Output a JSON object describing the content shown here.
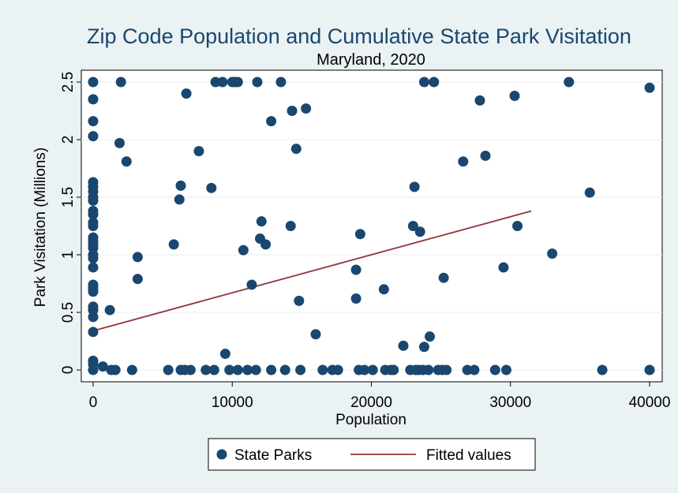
{
  "chart_data": {
    "type": "scatter",
    "title": "Zip Code Population and Cumulative State Park Visitation",
    "subtitle": "Maryland, 2020",
    "xlabel": "Population",
    "ylabel": "Park Visitation (Millions)",
    "xlim": [
      0,
      40000
    ],
    "ylim": [
      0,
      2.5
    ],
    "x_ticks": [
      0,
      10000,
      20000,
      30000,
      40000
    ],
    "x_tick_labels": [
      "0",
      "10000",
      "20000",
      "30000",
      "40000"
    ],
    "y_ticks": [
      0,
      0.5,
      1,
      1.5,
      2,
      2.5
    ],
    "y_tick_labels": [
      "0",
      "0.5",
      "1",
      "1.5",
      "2",
      "2.5"
    ],
    "grid": true,
    "legend_position": "bottom",
    "colors": {
      "scatter": "#1a476f",
      "fit": "#90353b",
      "background": "#eaf2f3",
      "plot_bg": "#ffffff"
    },
    "series": [
      {
        "name": "State Parks",
        "kind": "scatter",
        "points": [
          [
            0,
            2.5
          ],
          [
            0,
            2.35
          ],
          [
            0,
            2.16
          ],
          [
            0,
            2.03
          ],
          [
            0,
            1.63
          ],
          [
            0,
            1.59
          ],
          [
            0,
            1.55
          ],
          [
            0,
            1.5
          ],
          [
            0,
            1.47
          ],
          [
            0,
            1.38
          ],
          [
            0,
            1.35
          ],
          [
            0,
            1.28
          ],
          [
            0,
            1.25
          ],
          [
            0,
            1.15
          ],
          [
            0,
            1.12
          ],
          [
            0,
            1.09
          ],
          [
            0,
            1.06
          ],
          [
            0,
            1.0
          ],
          [
            0,
            0.97
          ],
          [
            0,
            0.89
          ],
          [
            0,
            0.74
          ],
          [
            0,
            0.71
          ],
          [
            0,
            0.68
          ],
          [
            0,
            0.55
          ],
          [
            0,
            0.52
          ],
          [
            0,
            0.46
          ],
          [
            0,
            0.33
          ],
          [
            0,
            0.08
          ],
          [
            0,
            0.05
          ],
          [
            0,
            0
          ],
          [
            700,
            0.03
          ],
          [
            1200,
            0.52
          ],
          [
            1300,
            0
          ],
          [
            1600,
            0
          ],
          [
            1900,
            1.97
          ],
          [
            2000,
            2.5
          ],
          [
            2400,
            1.81
          ],
          [
            2800,
            0
          ],
          [
            3200,
            0.98
          ],
          [
            3200,
            0.79
          ],
          [
            5400,
            0
          ],
          [
            5800,
            1.09
          ],
          [
            6200,
            1.48
          ],
          [
            6300,
            1.6
          ],
          [
            6300,
            0
          ],
          [
            6600,
            0
          ],
          [
            6700,
            2.4
          ],
          [
            7000,
            0
          ],
          [
            7600,
            1.9
          ],
          [
            8100,
            0
          ],
          [
            8500,
            1.58
          ],
          [
            8700,
            0
          ],
          [
            8800,
            2.5
          ],
          [
            9500,
            0.14
          ],
          [
            9800,
            0
          ],
          [
            9300,
            2.5
          ],
          [
            10000,
            2.5
          ],
          [
            10200,
            2.5
          ],
          [
            10400,
            2.5
          ],
          [
            10400,
            0
          ],
          [
            10800,
            1.04
          ],
          [
            11100,
            0
          ],
          [
            11400,
            0.74
          ],
          [
            11700,
            0
          ],
          [
            11800,
            2.5
          ],
          [
            12000,
            1.14
          ],
          [
            12100,
            1.29
          ],
          [
            12400,
            1.09
          ],
          [
            12800,
            2.16
          ],
          [
            12800,
            0
          ],
          [
            13500,
            2.5
          ],
          [
            13800,
            0
          ],
          [
            14200,
            1.25
          ],
          [
            14300,
            2.25
          ],
          [
            14600,
            1.92
          ],
          [
            14800,
            0.6
          ],
          [
            14900,
            0
          ],
          [
            15300,
            2.27
          ],
          [
            16000,
            0.31
          ],
          [
            16500,
            0
          ],
          [
            17200,
            0
          ],
          [
            17600,
            0
          ],
          [
            18900,
            0.87
          ],
          [
            18900,
            0.62
          ],
          [
            19100,
            0
          ],
          [
            19200,
            1.18
          ],
          [
            19500,
            0
          ],
          [
            20100,
            0
          ],
          [
            20900,
            0.7
          ],
          [
            21000,
            0
          ],
          [
            21400,
            0
          ],
          [
            21600,
            0
          ],
          [
            22300,
            0.21
          ],
          [
            22800,
            0
          ],
          [
            23000,
            1.25
          ],
          [
            23100,
            1.59
          ],
          [
            23200,
            0
          ],
          [
            23400,
            0
          ],
          [
            23500,
            1.2
          ],
          [
            23700,
            0
          ],
          [
            23800,
            0.2
          ],
          [
            23800,
            2.5
          ],
          [
            24100,
            0
          ],
          [
            24200,
            0.29
          ],
          [
            24500,
            2.5
          ],
          [
            24800,
            0
          ],
          [
            25100,
            0
          ],
          [
            25200,
            0.8
          ],
          [
            25400,
            0
          ],
          [
            26600,
            1.81
          ],
          [
            26900,
            0
          ],
          [
            27400,
            0
          ],
          [
            27800,
            2.34
          ],
          [
            28200,
            1.86
          ],
          [
            28900,
            0
          ],
          [
            29500,
            0.89
          ],
          [
            29700,
            0
          ],
          [
            30300,
            2.38
          ],
          [
            30500,
            1.25
          ],
          [
            33000,
            1.01
          ],
          [
            34200,
            2.5
          ],
          [
            35700,
            1.54
          ],
          [
            36600,
            0
          ],
          [
            40000,
            2.45
          ],
          [
            40000,
            0
          ]
        ]
      },
      {
        "name": "Fitted values",
        "kind": "line",
        "x": [
          0,
          31500
        ],
        "y": [
          0.34,
          1.38
        ]
      }
    ]
  }
}
